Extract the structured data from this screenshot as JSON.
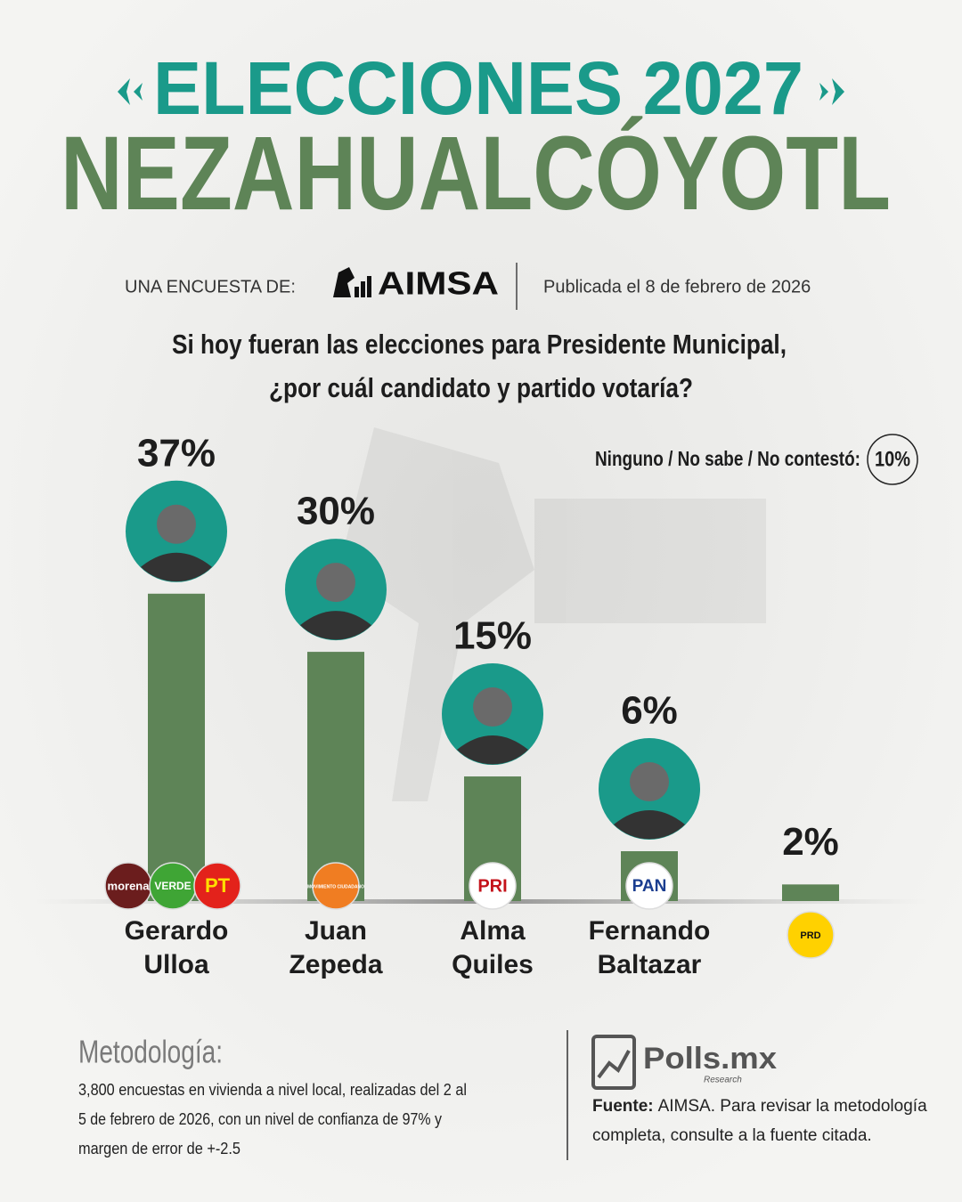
{
  "header": {
    "title": "ELECCIONES 2027",
    "subtitle": "NEZAHUALCÓYOTL",
    "pollster_prefix": "UNA ENCUESTA DE:",
    "pollster": "AIMSA",
    "published": "Publicada el 8 de febrero de 2026"
  },
  "chart_data": {
    "type": "bar",
    "title_lines": [
      "Si hoy fueran las elecciones para Presidente Municipal,",
      "¿por cuál candidato y partido votaría?"
    ],
    "categories": [
      "Gerardo Ulloa",
      "Juan Zepeda",
      "Alma Quiles",
      "Fernando Baltazar",
      null
    ],
    "values": [
      37,
      30,
      15,
      6,
      2
    ],
    "value_labels": [
      "37%",
      "30%",
      "15%",
      "6%",
      "2%"
    ],
    "parties": [
      [
        "morena",
        "VERDE",
        "PT"
      ],
      [
        "MOVIMIENTO CIUDADANO"
      ],
      [
        "PRI"
      ],
      [
        "PAN"
      ],
      [
        "PRD"
      ]
    ],
    "color": "#5e8457",
    "annotation": {
      "label": "Ninguno / No sabe / No contestó:",
      "value_text": "10%"
    }
  },
  "footer": {
    "methodology_title": "Metodología:",
    "methodology_lines": [
      "3,800 encuestas en vivienda a nivel local, realizadas del 2 al",
      "5 de febrero de 2026, con un nivel de confianza de 97% y",
      "margen de error de +-2.5"
    ],
    "brand": "Polls.mx",
    "brand_sub": "Research",
    "source_label": "Fuente:",
    "source_lines": [
      "AIMSA. Para revisar la metodología",
      "completa, consulte a la fuente citada."
    ]
  }
}
